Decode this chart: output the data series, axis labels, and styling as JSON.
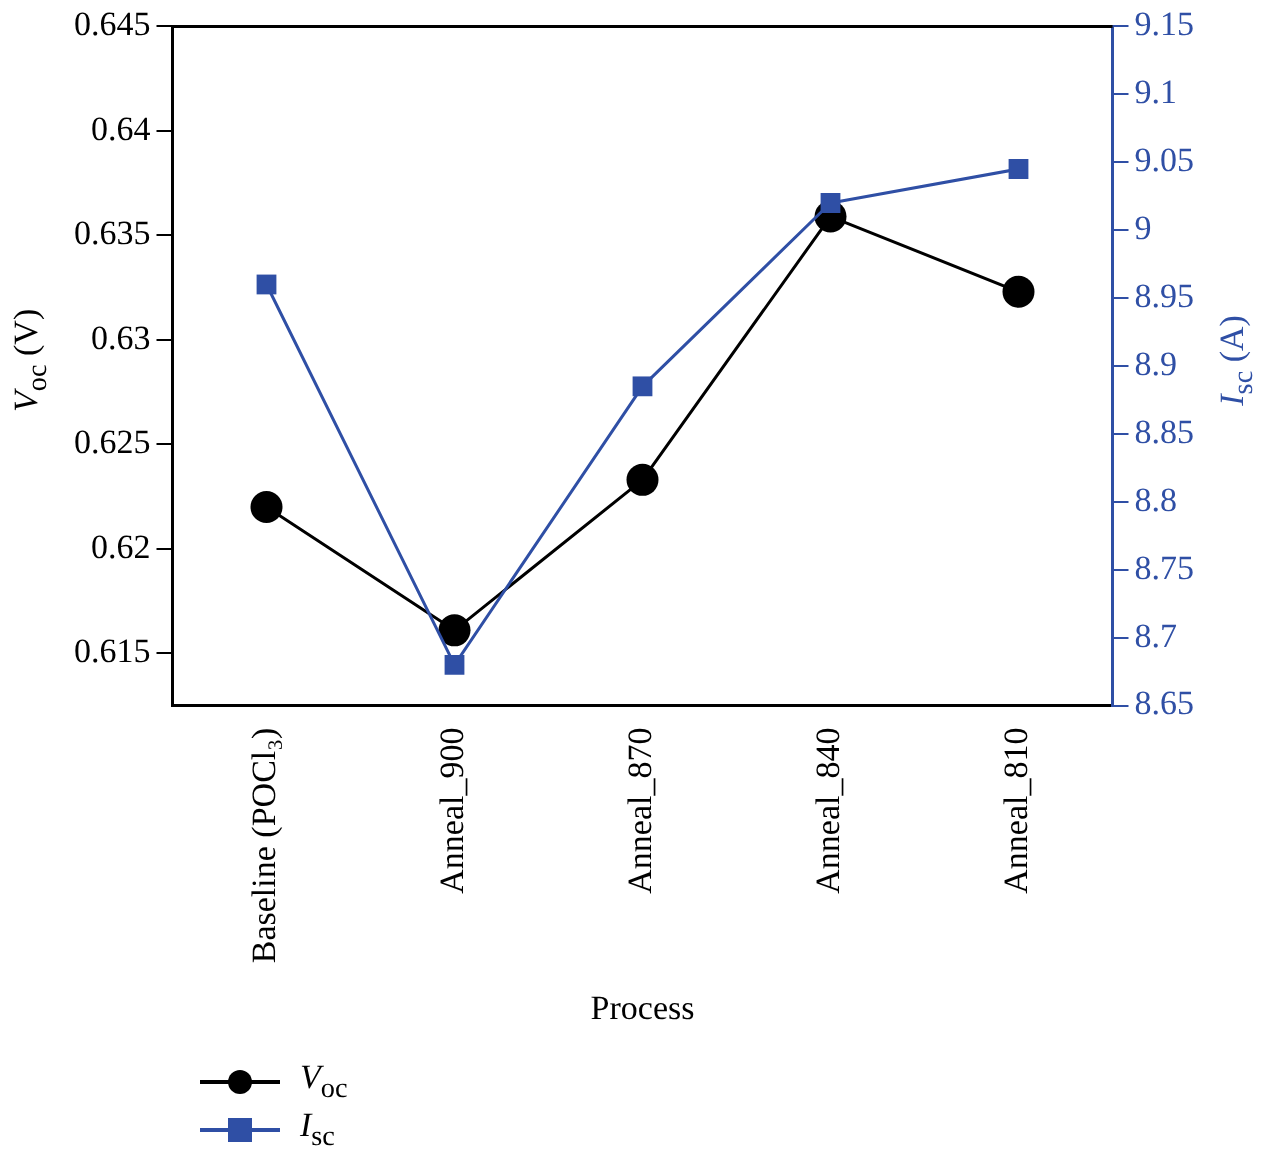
{
  "chart_data": {
    "type": "line",
    "xlabel": "Process",
    "ylabel": "V$_{oc}$ (V)",
    "y2label": "I$_{sc}$ (A)",
    "categories": [
      "Baseline (POCl₃)",
      "Anneal_900",
      "Anneal_870",
      "Anneal_840",
      "Anneal_810"
    ],
    "series": [
      {
        "name": "V$_{oc}$",
        "color": "#000000",
        "marker": "circle",
        "values": [
          0.622,
          0.6161,
          0.6233,
          0.6359,
          0.6323
        ]
      },
      {
        "name": "I$_{sc}$",
        "color": "#2f4fa5",
        "marker": "square",
        "axis": "y2",
        "values": [
          8.96,
          8.68,
          8.885,
          9.02,
          9.045
        ]
      }
    ],
    "ylim": [
      0.6125,
      0.645
    ],
    "yticks": [
      0.615,
      0.62,
      0.625,
      0.63,
      0.635,
      0.64,
      0.645
    ],
    "y2lim": [
      8.65,
      9.15
    ],
    "y2ticks": [
      8.65,
      8.7,
      8.75,
      8.8,
      8.85,
      8.9,
      8.95,
      9,
      9.05,
      9.1,
      9.15
    ],
    "grid": false,
    "legend": "bottom left"
  }
}
